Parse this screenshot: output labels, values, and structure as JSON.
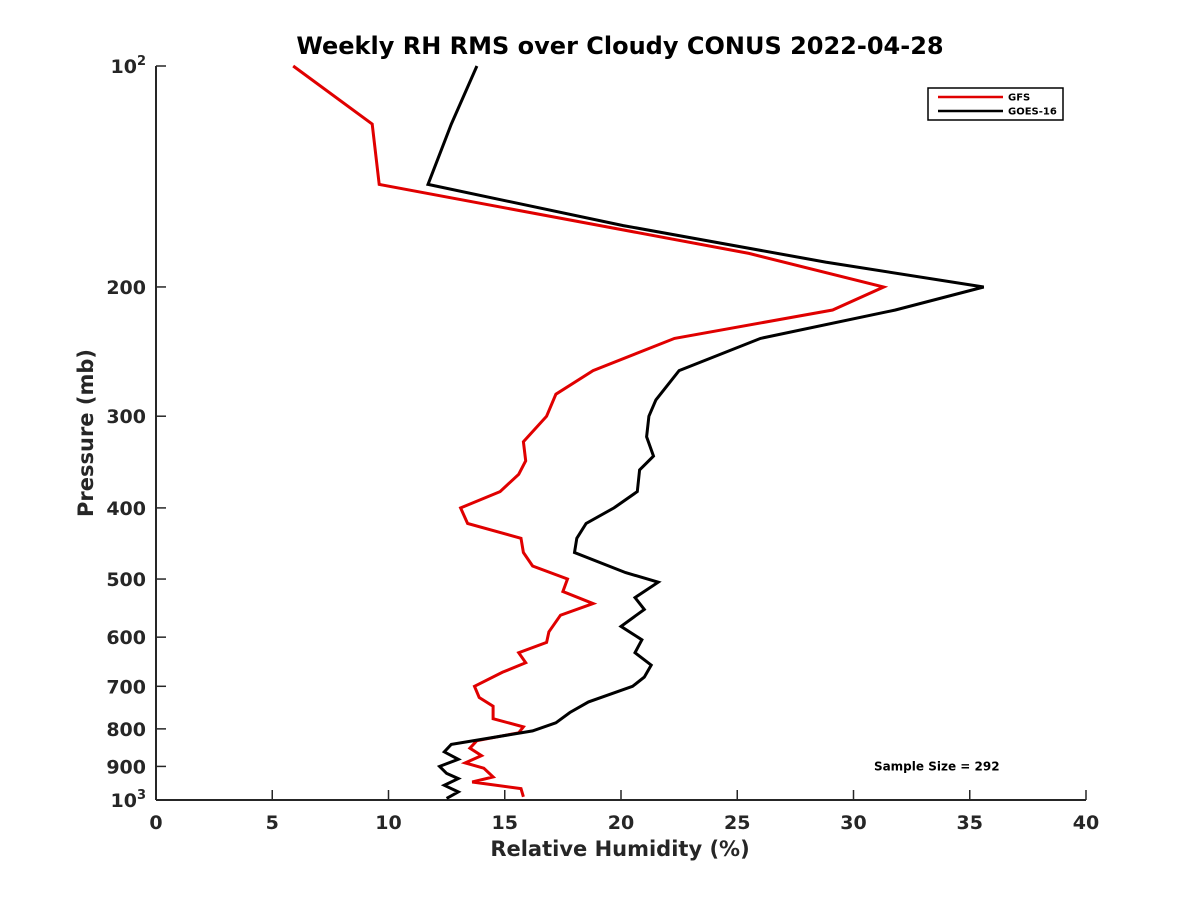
{
  "chart_data": {
    "type": "line",
    "title": "Weekly RH RMS over Cloudy CONUS 2022-04-28",
    "xlabel": "Relative Humidity (%)",
    "ylabel": "Pressure (mb)",
    "xlim": [
      0,
      40
    ],
    "ylim": [
      100,
      1000
    ],
    "yscale": "log",
    "y_reversed": true,
    "x_ticks": [
      0,
      5,
      10,
      15,
      20,
      25,
      30,
      35,
      40
    ],
    "y_ticks": [
      {
        "value": 100,
        "base": "10",
        "exp": "2"
      },
      {
        "value": 200,
        "label": "200"
      },
      {
        "value": 300,
        "label": "300"
      },
      {
        "value": 400,
        "label": "400"
      },
      {
        "value": 500,
        "label": "500"
      },
      {
        "value": 600,
        "label": "600"
      },
      {
        "value": 700,
        "label": "700"
      },
      {
        "value": 800,
        "label": "800"
      },
      {
        "value": 900,
        "label": "900"
      },
      {
        "value": 1000,
        "base": "10",
        "exp": "3"
      }
    ],
    "legend_position": "top-right",
    "grid": false,
    "series": [
      {
        "name": "GFS",
        "color": "#e00000",
        "points": [
          [
            5.9,
            100
          ],
          [
            9.3,
            120
          ],
          [
            9.6,
            145
          ],
          [
            25.5,
            180
          ],
          [
            31.3,
            200
          ],
          [
            29.1,
            215
          ],
          [
            22.3,
            235
          ],
          [
            18.8,
            260
          ],
          [
            17.2,
            280
          ],
          [
            16.8,
            300
          ],
          [
            15.8,
            325
          ],
          [
            15.9,
            345
          ],
          [
            15.6,
            360
          ],
          [
            14.8,
            380
          ],
          [
            13.1,
            400
          ],
          [
            13.4,
            420
          ],
          [
            15.7,
            440
          ],
          [
            15.8,
            460
          ],
          [
            16.2,
            480
          ],
          [
            17.7,
            500
          ],
          [
            17.5,
            520
          ],
          [
            18.8,
            540
          ],
          [
            17.4,
            560
          ],
          [
            16.9,
            590
          ],
          [
            16.8,
            610
          ],
          [
            15.6,
            630
          ],
          [
            15.9,
            650
          ],
          [
            14.9,
            670
          ],
          [
            13.7,
            700
          ],
          [
            13.9,
            725
          ],
          [
            14.5,
            745
          ],
          [
            14.5,
            775
          ],
          [
            15.8,
            795
          ],
          [
            15.6,
            810
          ],
          [
            13.8,
            830
          ],
          [
            13.5,
            850
          ],
          [
            14.0,
            870
          ],
          [
            13.3,
            890
          ],
          [
            14.1,
            905
          ],
          [
            14.5,
            930
          ],
          [
            13.6,
            945
          ],
          [
            15.7,
            965
          ],
          [
            15.8,
            990
          ]
        ]
      },
      {
        "name": "GOES-16",
        "color": "#000000",
        "points": [
          [
            13.8,
            100
          ],
          [
            12.7,
            120
          ],
          [
            11.7,
            145
          ],
          [
            20.1,
            165
          ],
          [
            28.8,
            185
          ],
          [
            35.6,
            200
          ],
          [
            31.8,
            215
          ],
          [
            26.0,
            235
          ],
          [
            22.5,
            260
          ],
          [
            21.5,
            285
          ],
          [
            21.2,
            300
          ],
          [
            21.1,
            320
          ],
          [
            21.4,
            340
          ],
          [
            20.8,
            355
          ],
          [
            20.7,
            380
          ],
          [
            19.7,
            400
          ],
          [
            18.5,
            420
          ],
          [
            18.1,
            440
          ],
          [
            18.0,
            460
          ],
          [
            20.2,
            490
          ],
          [
            21.6,
            505
          ],
          [
            20.6,
            530
          ],
          [
            21.0,
            550
          ],
          [
            20.0,
            580
          ],
          [
            20.9,
            605
          ],
          [
            20.6,
            630
          ],
          [
            21.3,
            655
          ],
          [
            21.0,
            680
          ],
          [
            20.5,
            700
          ],
          [
            18.6,
            735
          ],
          [
            17.8,
            760
          ],
          [
            17.2,
            785
          ],
          [
            16.2,
            805
          ],
          [
            12.7,
            840
          ],
          [
            12.4,
            860
          ],
          [
            13.0,
            880
          ],
          [
            12.2,
            900
          ],
          [
            12.5,
            920
          ],
          [
            13.0,
            935
          ],
          [
            12.4,
            955
          ],
          [
            13.0,
            975
          ],
          [
            12.5,
            995
          ]
        ]
      }
    ],
    "annotations": [
      {
        "text": "Sample Size = 292",
        "x": 31.0,
        "y": 900
      }
    ]
  }
}
